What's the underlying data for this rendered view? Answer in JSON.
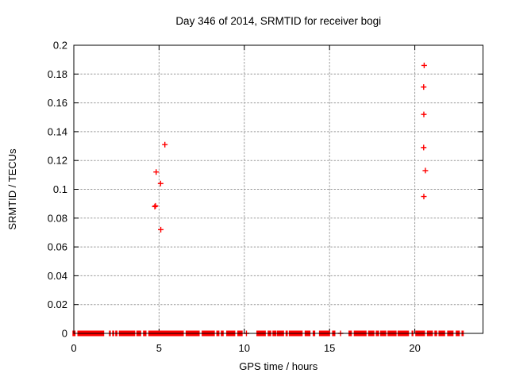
{
  "chart_data": {
    "type": "scatter",
    "title": "Day 346 of 2014, SRMTID for receiver bogi",
    "xlabel": "GPS time / hours",
    "ylabel": "SRMTID / TECUs",
    "xlim": [
      0,
      24
    ],
    "ylim": [
      0,
      0.2
    ],
    "grid": true,
    "legend": "none",
    "background": "#ffffff",
    "axis_color": "#000000",
    "grid_color": "#9a9a9a",
    "marker": {
      "shape": "plus",
      "color": "#ff0000",
      "size": 7
    },
    "xticks": [
      {
        "value": 0,
        "label": "0"
      },
      {
        "value": 5,
        "label": "5"
      },
      {
        "value": 10,
        "label": "10"
      },
      {
        "value": 15,
        "label": "15"
      },
      {
        "value": 20,
        "label": "20"
      }
    ],
    "yticks": [
      {
        "value": 0,
        "label": "0"
      },
      {
        "value": 0.02,
        "label": "0.02"
      },
      {
        "value": 0.04,
        "label": "0.04"
      },
      {
        "value": 0.06,
        "label": "0.06"
      },
      {
        "value": 0.08,
        "label": "0.08"
      },
      {
        "value": 0.1,
        "label": "0.1"
      },
      {
        "value": 0.12,
        "label": "0.12"
      },
      {
        "value": 0.14,
        "label": "0.14"
      },
      {
        "value": 0.16,
        "label": "0.16"
      },
      {
        "value": 0.18,
        "label": "0.18"
      },
      {
        "value": 0.2,
        "label": "0.2"
      }
    ],
    "outlier_points": [
      {
        "x": 5.34,
        "y": 0.131
      },
      {
        "x": 4.83,
        "y": 0.112
      },
      {
        "x": 5.09,
        "y": 0.104
      },
      {
        "x": 4.75,
        "y": 0.088
      },
      {
        "x": 4.79,
        "y": 0.0885
      },
      {
        "x": 5.1,
        "y": 0.072
      },
      {
        "x": 20.55,
        "y": 0.186
      },
      {
        "x": 20.52,
        "y": 0.171
      },
      {
        "x": 20.53,
        "y": 0.152
      },
      {
        "x": 20.52,
        "y": 0.129
      },
      {
        "x": 20.62,
        "y": 0.113
      },
      {
        "x": 20.53,
        "y": 0.095
      }
    ],
    "baseline_band": {
      "y": 0,
      "description": "dense runs of + markers at SRMTID ~ 0 TECUs, given as [start,end] in GPS hours",
      "segments_hours": [
        [
          -0.08,
          0.1
        ],
        [
          0.21,
          1.78
        ],
        [
          2.06,
          2.17
        ],
        [
          2.25,
          2.37
        ],
        [
          2.43,
          2.56
        ],
        [
          2.64,
          3.6
        ],
        [
          3.67,
          3.95
        ],
        [
          4.06,
          4.26
        ],
        [
          4.37,
          6.45
        ],
        [
          6.56,
          7.38
        ],
        [
          7.5,
          8.27
        ],
        [
          8.36,
          8.54
        ],
        [
          8.62,
          8.79
        ],
        [
          8.94,
          9.47
        ],
        [
          9.59,
          9.9
        ],
        [
          10.09,
          10.16
        ],
        [
          10.71,
          11.26
        ],
        [
          11.37,
          11.58
        ],
        [
          11.65,
          11.88
        ],
        [
          11.91,
          12.33
        ],
        [
          12.42,
          12.55
        ],
        [
          12.61,
          13.42
        ],
        [
          13.54,
          13.88
        ],
        [
          14.01,
          14.16
        ],
        [
          14.38,
          15.03
        ],
        [
          15.15,
          15.34
        ],
        [
          15.61,
          15.68
        ],
        [
          16.11,
          16.31
        ],
        [
          16.42,
          17.17
        ],
        [
          17.26,
          17.63
        ],
        [
          17.71,
          17.91
        ],
        [
          17.97,
          18.33
        ],
        [
          18.4,
          18.93
        ],
        [
          18.99,
          19.66
        ],
        [
          19.81,
          19.92
        ],
        [
          20.03,
          20.6
        ],
        [
          20.71,
          21.06
        ],
        [
          21.15,
          21.31
        ],
        [
          21.39,
          21.78
        ],
        [
          21.9,
          22.27
        ],
        [
          22.4,
          22.64
        ],
        [
          22.74,
          22.87
        ]
      ]
    }
  }
}
